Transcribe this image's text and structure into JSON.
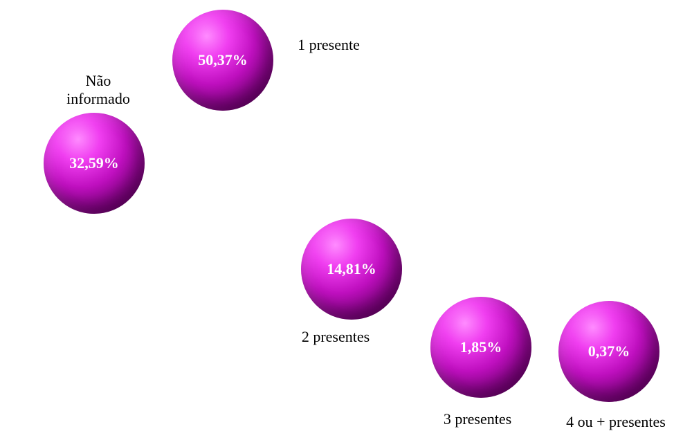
{
  "chart_data": {
    "type": "bubble",
    "title": "",
    "categories": [
      "Não\ninformado",
      "1 presente",
      "2 presentes",
      "3 presentes",
      "4 ou + presentes"
    ],
    "values": [
      32.59,
      50.37,
      14.81,
      1.85,
      0.37
    ],
    "value_labels": [
      "32,59%",
      "50,37%",
      "14,81%",
      "1,85%",
      "0,37%"
    ],
    "unit": "%",
    "colors": {
      "sphere": "#cc11cc",
      "value_text": "#ffffff",
      "label_text": "#000000"
    }
  }
}
